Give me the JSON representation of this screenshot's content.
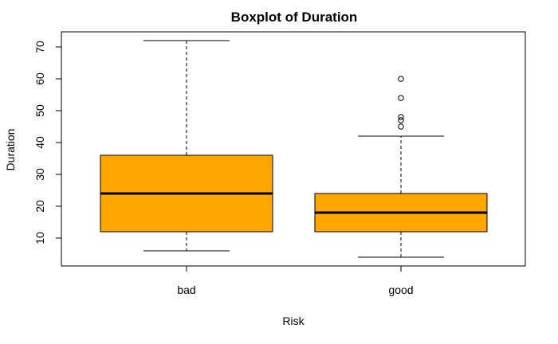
{
  "chart_data": {
    "type": "boxplot",
    "title": "Boxplot of Duration",
    "xlabel": "Risk",
    "ylabel": "Duration",
    "categories": [
      "bad",
      "good"
    ],
    "ylim": [
      4,
      72
    ],
    "yticks": [
      10,
      20,
      30,
      40,
      50,
      60,
      70
    ],
    "box_color": "#FFA500",
    "boxes": [
      {
        "category": "bad",
        "min": 6,
        "q1": 12,
        "median": 24,
        "q3": 36,
        "max": 72,
        "outliers": []
      },
      {
        "category": "good",
        "min": 4,
        "q1": 12,
        "median": 18,
        "q3": 24,
        "max": 42,
        "outliers": [
          45,
          47,
          48,
          54,
          60
        ]
      }
    ],
    "grid": false,
    "legend": "none"
  }
}
